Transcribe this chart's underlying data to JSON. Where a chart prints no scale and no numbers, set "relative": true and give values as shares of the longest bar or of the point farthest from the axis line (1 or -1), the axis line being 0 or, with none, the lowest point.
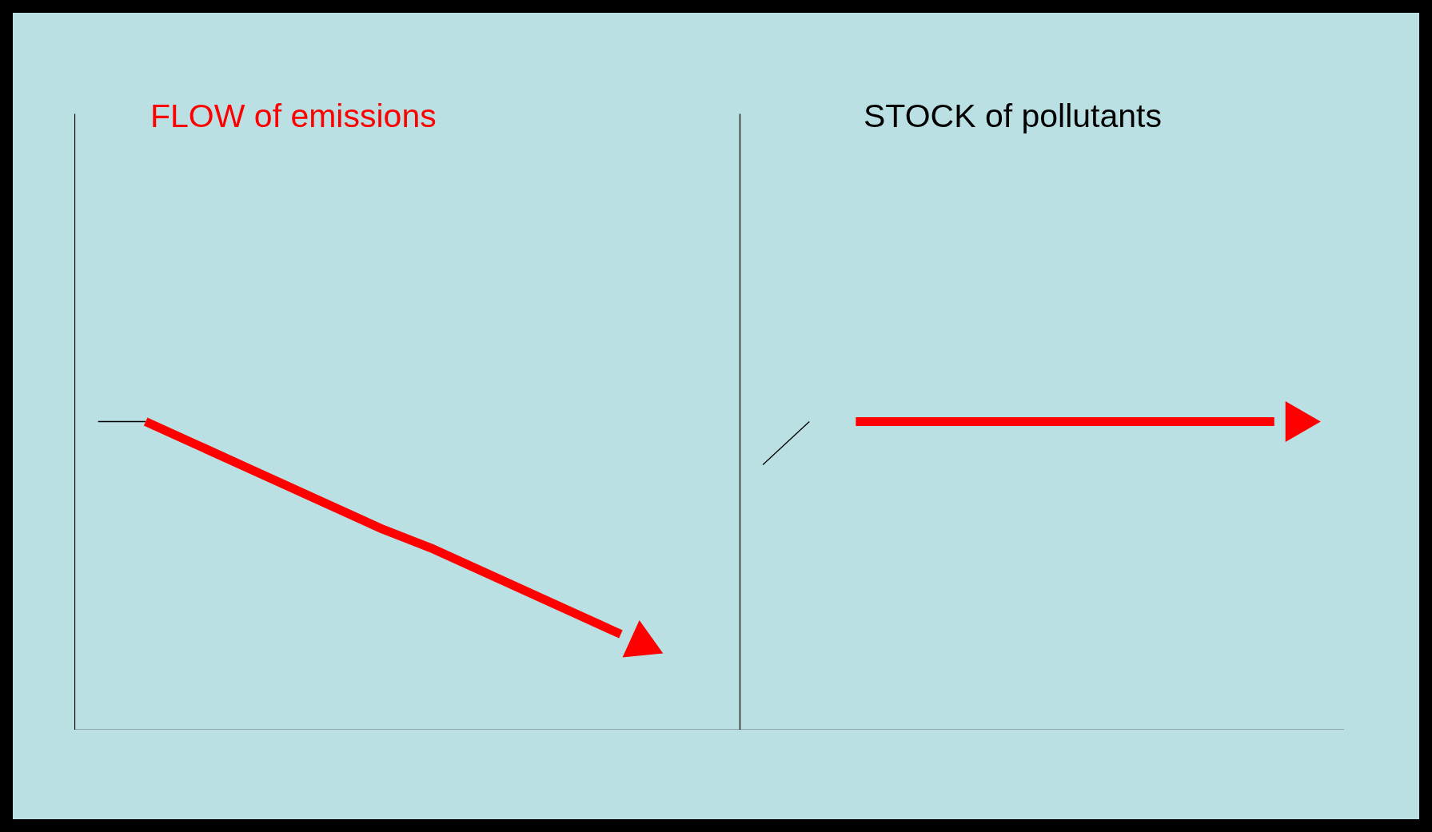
{
  "chart_data": [
    {
      "type": "line",
      "title": "FLOW of emissions",
      "relative": true,
      "tick_labels": false,
      "categories": [
        null,
        null,
        null,
        null,
        null,
        null,
        null,
        null,
        null,
        null,
        null,
        null,
        null,
        null
      ],
      "series": [
        {
          "color": "#000000",
          "values": [
            1,
            1,
            null,
            null,
            null,
            null,
            null,
            null,
            null,
            null,
            null,
            null,
            null,
            null
          ]
        },
        {
          "color": "#ff0000",
          "values": [
            null,
            1,
            0.93,
            0.86,
            0.79,
            0.72,
            0.65,
            0.59,
            0.52,
            0.45,
            0.38,
            0.31,
            null,
            null
          ]
        }
      ]
    },
    {
      "type": "line",
      "title": "STOCK of pollutants",
      "relative": true,
      "tick_labels": false,
      "categories": [
        null,
        null,
        null,
        null,
        null,
        null,
        null,
        null,
        null,
        null,
        null,
        null,
        null
      ],
      "series": [
        {
          "color": "#000000",
          "values": [
            0.86,
            1,
            null,
            null,
            null,
            null,
            null,
            null,
            null,
            null,
            null,
            null,
            null
          ]
        },
        {
          "color": "#ff0000",
          "values": [
            null,
            null,
            1,
            1,
            1,
            1,
            1,
            1,
            1,
            1,
            1,
            1,
            null
          ]
        }
      ]
    }
  ]
}
